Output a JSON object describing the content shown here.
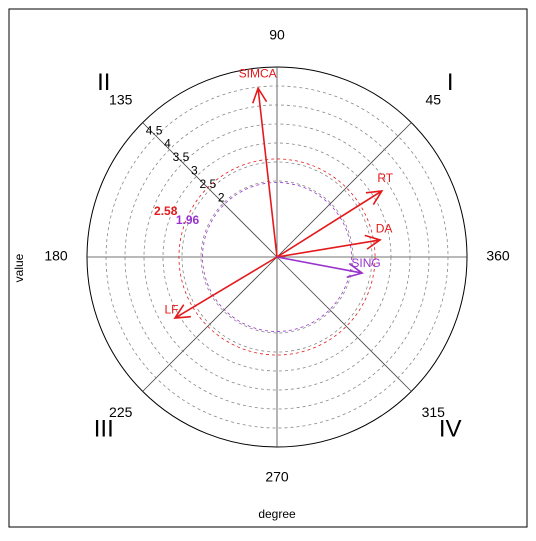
{
  "chart_data": {
    "type": "polar",
    "xlabel": "degree",
    "ylabel": "value",
    "rlim": [
      0,
      5
    ],
    "rticks": [
      2,
      2.5,
      3,
      3.5,
      4,
      4.5
    ],
    "rtick_angle": 135,
    "thetaticks": [
      45,
      90,
      135,
      180,
      225,
      270,
      315,
      360
    ],
    "quadrant_labels": [
      "I",
      "II",
      "III",
      "IV"
    ],
    "reference_circles": [
      {
        "value": 2.58,
        "color": "#e41a1c"
      },
      {
        "value": 1.96,
        "color": "#9933cc"
      }
    ],
    "vectors": [
      {
        "name": "SIMCA",
        "angle": 96.4,
        "value": 4.47,
        "color": "#e41a1c"
      },
      {
        "name": "RT",
        "angle": 32.2,
        "value": 3.26,
        "color": "#e41a1c"
      },
      {
        "name": "DA",
        "angle": 9.4,
        "value": 2.75,
        "color": "#e41a1c"
      },
      {
        "name": "SING",
        "angle": 349.3,
        "value": 2.28,
        "color": "#9933cc"
      },
      {
        "name": "LF",
        "angle": 210.9,
        "value": 3.13,
        "color": "#e41a1c"
      }
    ]
  }
}
